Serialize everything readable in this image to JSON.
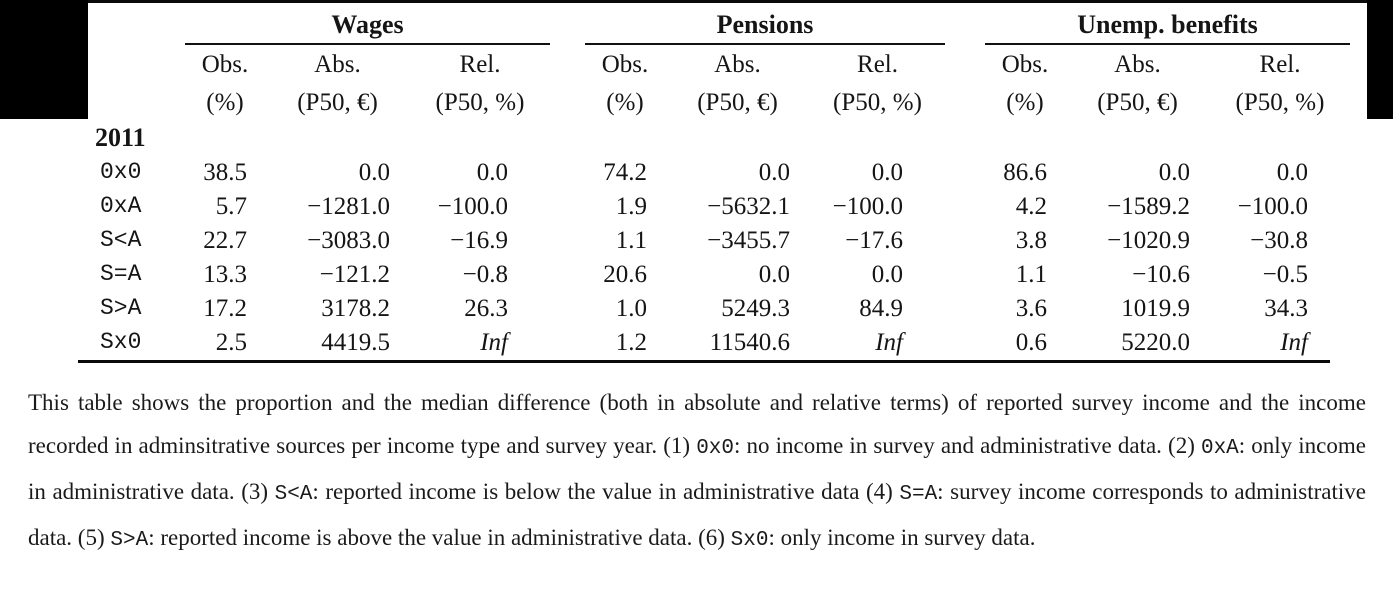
{
  "table": {
    "groups": [
      {
        "label": "Wages",
        "columns": [
          {
            "name": "Obs.",
            "unit": "(%)"
          },
          {
            "name": "Abs.",
            "unit": "(P50, €)"
          },
          {
            "name": "Rel.",
            "unit": "(P50, %)"
          }
        ]
      },
      {
        "label": "Pensions",
        "columns": [
          {
            "name": "Obs.",
            "unit": "(%)"
          },
          {
            "name": "Abs.",
            "unit": "(P50, €)"
          },
          {
            "name": "Rel.",
            "unit": "(P50, %)"
          }
        ]
      },
      {
        "label": "Unemp. benefits",
        "columns": [
          {
            "name": "Obs.",
            "unit": "(%)"
          },
          {
            "name": "Abs.",
            "unit": "(P50, €)"
          },
          {
            "name": "Rel.",
            "unit": "(P50, %)"
          }
        ]
      }
    ],
    "year_label": "2011",
    "rows": [
      {
        "label": "0x0",
        "values": [
          "38.5",
          "0.0",
          "0.0",
          "74.2",
          "0.0",
          "0.0",
          "86.6",
          "0.0",
          "0.0"
        ]
      },
      {
        "label": "0xA",
        "values": [
          "5.7",
          "−1281.0",
          "−100.0",
          "1.9",
          "−5632.1",
          "−100.0",
          "4.2",
          "−1589.2",
          "−100.0"
        ]
      },
      {
        "label": "S<A",
        "values": [
          "22.7",
          "−3083.0",
          "−16.9",
          "1.1",
          "−3455.7",
          "−17.6",
          "3.8",
          "−1020.9",
          "−30.8"
        ]
      },
      {
        "label": "S=A",
        "values": [
          "13.3",
          "−121.2",
          "−0.8",
          "20.6",
          "0.0",
          "0.0",
          "1.1",
          "−10.6",
          "−0.5"
        ]
      },
      {
        "label": "S>A",
        "values": [
          "17.2",
          "3178.2",
          "26.3",
          "1.0",
          "5249.3",
          "84.9",
          "3.6",
          "1019.9",
          "34.3"
        ]
      },
      {
        "label": "Sx0",
        "values": [
          "2.5",
          "4419.5",
          "Inf",
          "1.2",
          "11540.6",
          "Inf",
          "0.6",
          "5220.0",
          "Inf"
        ]
      }
    ]
  },
  "note": {
    "segments": [
      {
        "mono": false,
        "text": "This table shows the proportion and the median difference (both in absolute and relative terms) of reported survey income and the income recorded in adminsitrative sources per income type and survey year. (1) "
      },
      {
        "mono": true,
        "text": "0x0"
      },
      {
        "mono": false,
        "text": ": no income in survey and administrative data. (2) "
      },
      {
        "mono": true,
        "text": "0xA"
      },
      {
        "mono": false,
        "text": ": only income in administrative data. (3) "
      },
      {
        "mono": true,
        "text": "S<A"
      },
      {
        "mono": false,
        "text": ": reported income is below the value in administrative data (4) "
      },
      {
        "mono": true,
        "text": "S=A"
      },
      {
        "mono": false,
        "text": ": survey income corresponds to administrative data. (5) "
      },
      {
        "mono": true,
        "text": "S>A"
      },
      {
        "mono": false,
        "text": ": reported income is above the value in administrative data. (6) "
      },
      {
        "mono": true,
        "text": "Sx0"
      },
      {
        "mono": false,
        "text": ": only income in survey data."
      }
    ]
  },
  "colors": {
    "background": "#ffffff",
    "text": "#151515",
    "rule": "#0a0a0a",
    "mask": "#000000"
  }
}
